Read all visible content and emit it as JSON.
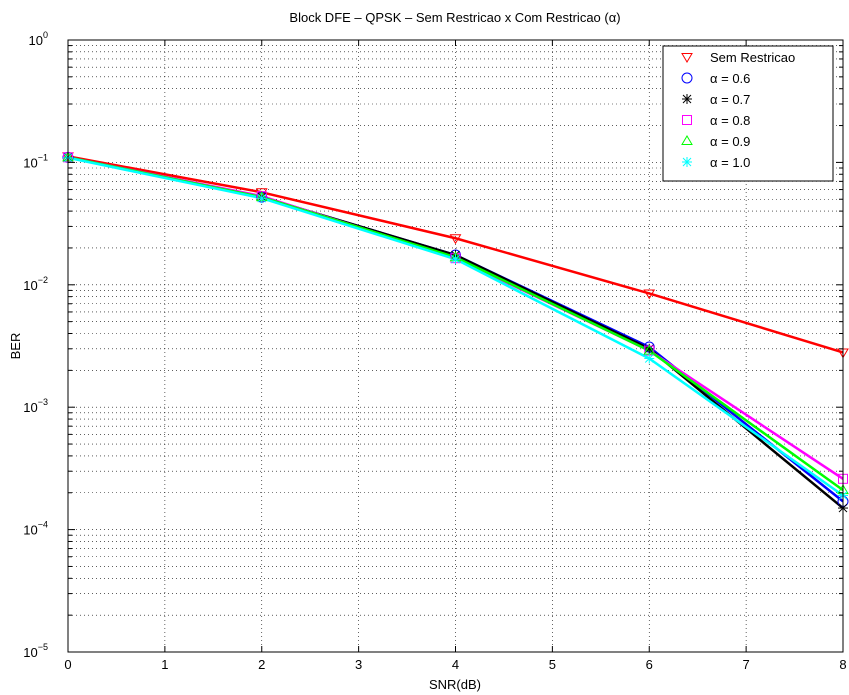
{
  "chart_data": {
    "type": "line",
    "title": "Block DFE – QPSK – Sem Restricao x Com Restricao (α)",
    "xlabel": "SNR(dB)",
    "ylabel": "BER",
    "xlim": [
      0,
      8
    ],
    "ylim": [
      1e-05,
      1
    ],
    "yscale": "log",
    "grid": true,
    "legend_position": "top-right",
    "x": [
      0,
      2,
      4,
      6,
      8
    ],
    "x_ticks": [
      "0",
      "1",
      "2",
      "3",
      "4",
      "5",
      "6",
      "7",
      "8"
    ],
    "y_ticks": [
      {
        "base": "10",
        "exp": "0"
      },
      {
        "base": "10",
        "exp": "−1"
      },
      {
        "base": "10",
        "exp": "−2"
      },
      {
        "base": "10",
        "exp": "−3"
      },
      {
        "base": "10",
        "exp": "−4"
      },
      {
        "base": "10",
        "exp": "−5"
      }
    ],
    "series": [
      {
        "name": "Sem Restricao",
        "color": "#ff0000",
        "marker": "triangle-down",
        "values": [
          0.112,
          0.057,
          0.024,
          0.0085,
          0.0028
        ]
      },
      {
        "name": "α = 0.6",
        "color": "#0000ff",
        "marker": "circle",
        "values": [
          0.11,
          0.052,
          0.0175,
          0.0031,
          0.00017
        ]
      },
      {
        "name": "α = 0.7",
        "color": "#000000",
        "marker": "asterisk",
        "values": [
          0.11,
          0.052,
          0.0175,
          0.003,
          0.00015
        ]
      },
      {
        "name": "α = 0.8",
        "color": "#ff00ff",
        "marker": "square",
        "values": [
          0.11,
          0.053,
          0.0165,
          0.0029,
          0.00026
        ]
      },
      {
        "name": "α = 0.9",
        "color": "#00ff00",
        "marker": "triangle-up",
        "values": [
          0.11,
          0.052,
          0.0168,
          0.0029,
          0.00021
        ]
      },
      {
        "name": "α = 1.0",
        "color": "#00ffff",
        "marker": "asterisk",
        "values": [
          0.109,
          0.051,
          0.0162,
          0.0025,
          0.00019
        ]
      }
    ]
  }
}
